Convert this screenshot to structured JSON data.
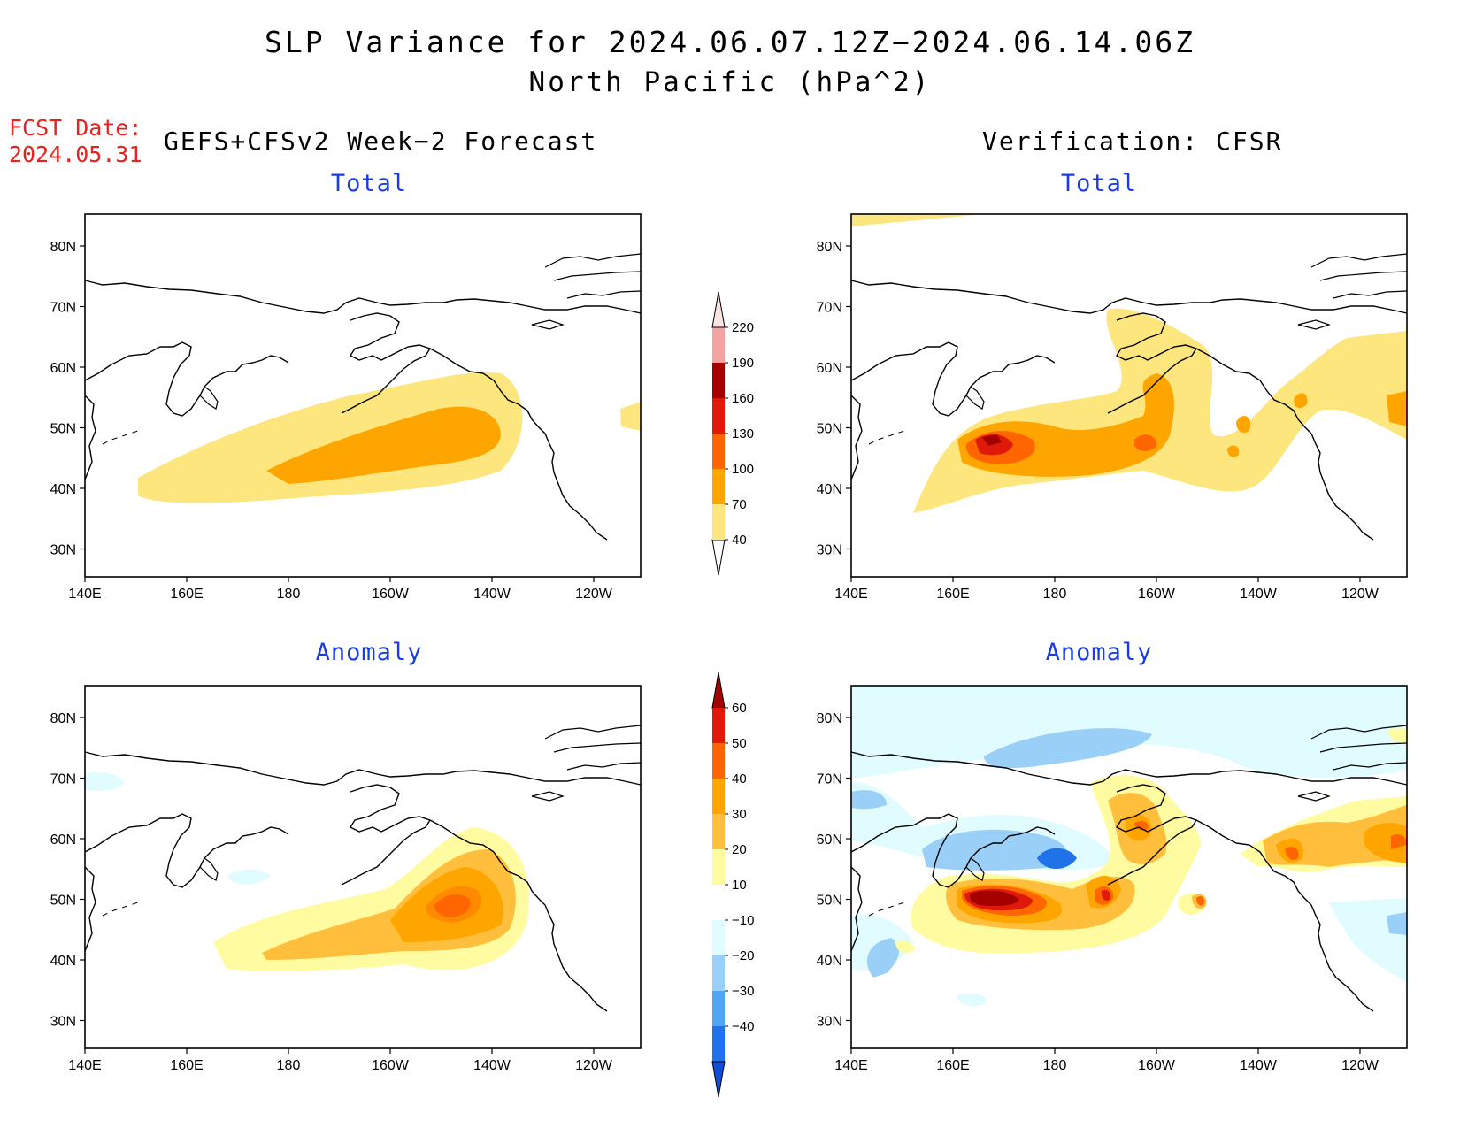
{
  "header": {
    "title_line1": "SLP Variance for 2024.06.07.12Z−2024.06.14.06Z",
    "title_line2": "North Pacific (hPa^2)",
    "fcst_date_label": "FCST Date:",
    "fcst_date_value": "2024.05.31",
    "forecast_header": "GEFS+CFSv2 Week−2 Forecast",
    "verification_header": "Verification: CFSR"
  },
  "panels": {
    "top_left_title": "Total",
    "top_right_title": "Total",
    "bottom_left_title": "Anomaly",
    "bottom_right_title": "Anomaly"
  },
  "axes": {
    "lat_labels": [
      "80N",
      "70N",
      "60N",
      "50N",
      "40N",
      "30N"
    ],
    "lon_labels": [
      "140E",
      "160E",
      "180",
      "160W",
      "140W",
      "120W"
    ]
  },
  "colorbars": {
    "total": {
      "labels": [
        "40",
        "70",
        "100",
        "130",
        "160",
        "190",
        "220"
      ],
      "colors": [
        "#ffffff",
        "#fde67d",
        "#ffa500",
        "#ff6500",
        "#e01a0b",
        "#a50000",
        "#f4a3a3",
        "#fde4e4"
      ]
    },
    "anomaly": {
      "labels": [
        "60",
        "50",
        "40",
        "30",
        "20",
        "10",
        "−10",
        "−20",
        "−30",
        "−40"
      ],
      "colors": [
        "#a50000",
        "#e01a0b",
        "#ff6500",
        "#ffa500",
        "#ffbf3c",
        "#fefba0",
        "#ffffff",
        "#e0fcff",
        "#9ad0f8",
        "#50a5f5",
        "#1f72e8",
        "#0f4fd8"
      ]
    }
  }
}
